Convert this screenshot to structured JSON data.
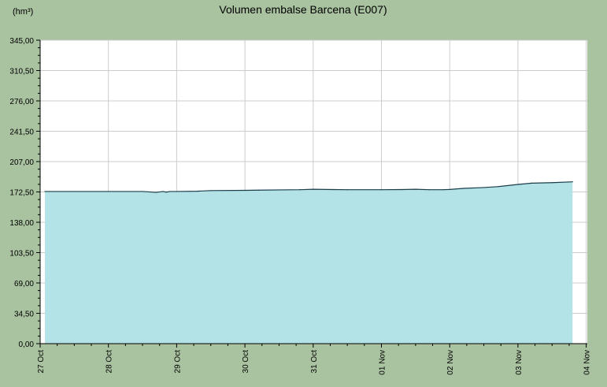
{
  "chart_data": {
    "type": "area",
    "title": "Volumen embalse Barcena  (E007)",
    "ylabel": "(hm³)",
    "xlabel": "",
    "ylim": [
      0,
      345
    ],
    "y_ticks": [
      "0,00",
      "34,50",
      "69,00",
      "103,50",
      "138,00",
      "172,50",
      "207,00",
      "241,50",
      "276,00",
      "310,50",
      "345,00"
    ],
    "x_ticks": [
      "27 Oct",
      "28 Oct",
      "29 Oct",
      "30 Oct",
      "31 Oct",
      "01 Nov",
      "02 Nov",
      "03 Nov",
      "04 Nov"
    ],
    "x_range_days": [
      0,
      8
    ],
    "grid": true,
    "series": [
      {
        "x_days": [
          0.07,
          0.5,
          1.0,
          1.5,
          1.7,
          1.8,
          1.85,
          1.9,
          2.0,
          2.3,
          2.5,
          3.0,
          3.2,
          3.5,
          3.8,
          4.0,
          4.3,
          4.5,
          5.0,
          5.3,
          5.5,
          5.7,
          5.9,
          6.0,
          6.2,
          6.5,
          6.7,
          7.0,
          7.2,
          7.5,
          7.8
        ],
        "values": [
          173.0,
          173.0,
          173.0,
          173.0,
          172.0,
          173.0,
          172.3,
          173.0,
          173.0,
          173.3,
          174.0,
          174.3,
          174.5,
          174.8,
          175.0,
          175.5,
          175.2,
          175.0,
          175.0,
          175.2,
          175.5,
          175.0,
          175.0,
          175.3,
          176.5,
          177.5,
          178.5,
          181.0,
          182.5,
          183.0,
          184.0
        ],
        "color": "#b3e3e6",
        "line_color": "#1a3d4a"
      }
    ],
    "colors": {
      "background": "#a9c2a0",
      "plot_background": "#ffffff",
      "grid": "#cccccc",
      "axis": "#000000"
    }
  }
}
